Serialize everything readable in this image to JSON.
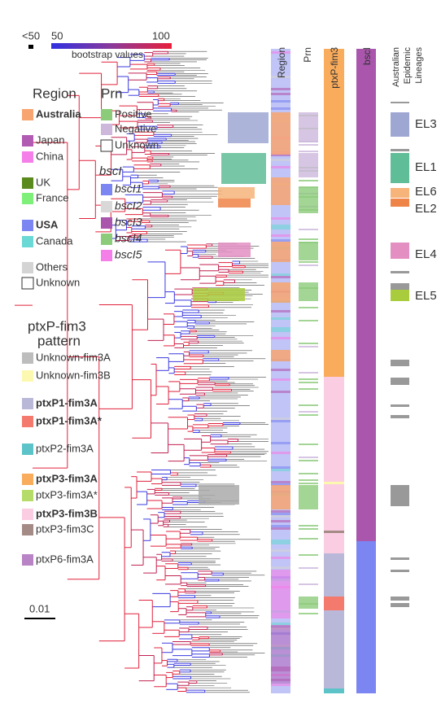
{
  "bootstrap": {
    "min_label": "<50",
    "low_label": "50",
    "high_label": "100",
    "caption": "bootstrap values"
  },
  "region": {
    "title": "Region",
    "items": [
      {
        "label": "Australia",
        "color": "#f7a470",
        "bold": true
      },
      {
        "label": "Japan",
        "color": "#b25bb3"
      },
      {
        "label": "China",
        "color": "#f57fe8"
      },
      {
        "label": "UK",
        "color": "#5a8a1e"
      },
      {
        "label": "France",
        "color": "#7ef07a"
      },
      {
        "label": "USA",
        "color": "#7b86f2",
        "bold": true
      },
      {
        "label": "Canada",
        "color": "#6ad8d4"
      },
      {
        "label": "Others",
        "color": "#d4d4d4"
      },
      {
        "label": "Unknown",
        "color": "#ffffff"
      }
    ]
  },
  "prn": {
    "title": "Prn",
    "items": [
      {
        "label": "Positive",
        "color": "#8ccb7a"
      },
      {
        "label": "Negative",
        "color": "#cdb8dc"
      },
      {
        "label": "Unknown",
        "color": "#ffffff"
      }
    ]
  },
  "bscl": {
    "title": "bscI",
    "items": [
      {
        "label": "bscI1",
        "color": "#7b86f2"
      },
      {
        "label": "bscI2",
        "color": "#d8d8d8"
      },
      {
        "label": "bscI3",
        "color": "#a956ac"
      },
      {
        "label": "bscI4",
        "color": "#8ccb7a"
      },
      {
        "label": "bscI5",
        "color": "#f57fe8"
      }
    ]
  },
  "ptxp": {
    "title": [
      "ptxP-fim3",
      "pattern"
    ],
    "items": [
      {
        "label": "Unknown-fim3A",
        "color": "#bdbdbd"
      },
      {
        "label": "Unknown-fim3B",
        "color": "#fdf8b0"
      },
      {
        "label": "ptxP1-fim3A",
        "color": "#b9b8d8",
        "bold": true
      },
      {
        "label": "ptxP1-fim3A*",
        "color": "#f57a6e",
        "bold": true
      },
      {
        "label": "ptxP2-fim3A",
        "color": "#5cc4c8"
      },
      {
        "label": "ptxP3-fim3A",
        "color": "#f9ac5c",
        "bold": true
      },
      {
        "label": "ptxP3-fim3A*",
        "color": "#b5dc68"
      },
      {
        "label": "ptxP3-fim3B",
        "color": "#fbcde2",
        "bold": true
      },
      {
        "label": "ptxP3-fim3C",
        "color": "#a48b86"
      },
      {
        "label": "ptxP6-fim3A",
        "color": "#b984c6"
      }
    ]
  },
  "columns": [
    "Region",
    "Prn",
    "ptxP-fim3",
    "bscI"
  ],
  "lineages_header": [
    "Australian",
    "Epidemic",
    "Lineages"
  ],
  "lineages": [
    {
      "label": "EL3",
      "color": "#9ea7d2"
    },
    {
      "label": "EL1",
      "color": "#5fbd97"
    },
    {
      "label": "EL6",
      "color": "#f6b37a"
    },
    {
      "label": "EL2",
      "color": "#ef8448"
    },
    {
      "label": "EL4",
      "color": "#e38fc2"
    },
    {
      "label": "EL5",
      "color": "#a9cc3c"
    }
  ],
  "scale_bar": "0.01"
}
